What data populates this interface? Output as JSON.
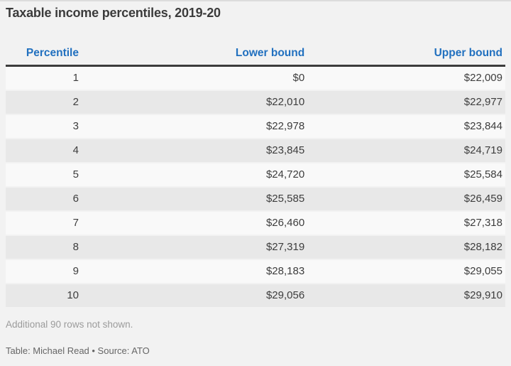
{
  "colors": {
    "page_bg": "#f2f2f2",
    "title_text": "#3b3b3b",
    "header_text": "#2170bf",
    "header_rule": "#3c3c3c",
    "cell_text": "#3d3d3d",
    "row_odd_bg": "#f9f9f9",
    "row_even_bg": "#e8e8e8",
    "note_text": "#9b9b9b",
    "credit_text": "#666666"
  },
  "chart_data": {
    "type": "table",
    "title": "Taxable income percentiles, 2019-20",
    "columns": [
      "Percentile",
      "Lower bound",
      "Upper bound"
    ],
    "rows": [
      [
        "1",
        "$0",
        "$22,009"
      ],
      [
        "2",
        "$22,010",
        "$22,977"
      ],
      [
        "3",
        "$22,978",
        "$23,844"
      ],
      [
        "4",
        "$23,845",
        "$24,719"
      ],
      [
        "5",
        "$24,720",
        "$25,584"
      ],
      [
        "6",
        "$25,585",
        "$26,459"
      ],
      [
        "7",
        "$26,460",
        "$27,318"
      ],
      [
        "8",
        "$27,319",
        "$28,182"
      ],
      [
        "9",
        "$28,183",
        "$29,055"
      ],
      [
        "10",
        "$29,056",
        "$29,910"
      ]
    ],
    "note": "Additional 90 rows not shown.",
    "credit": "Table: Michael Read • Source: ATO"
  }
}
